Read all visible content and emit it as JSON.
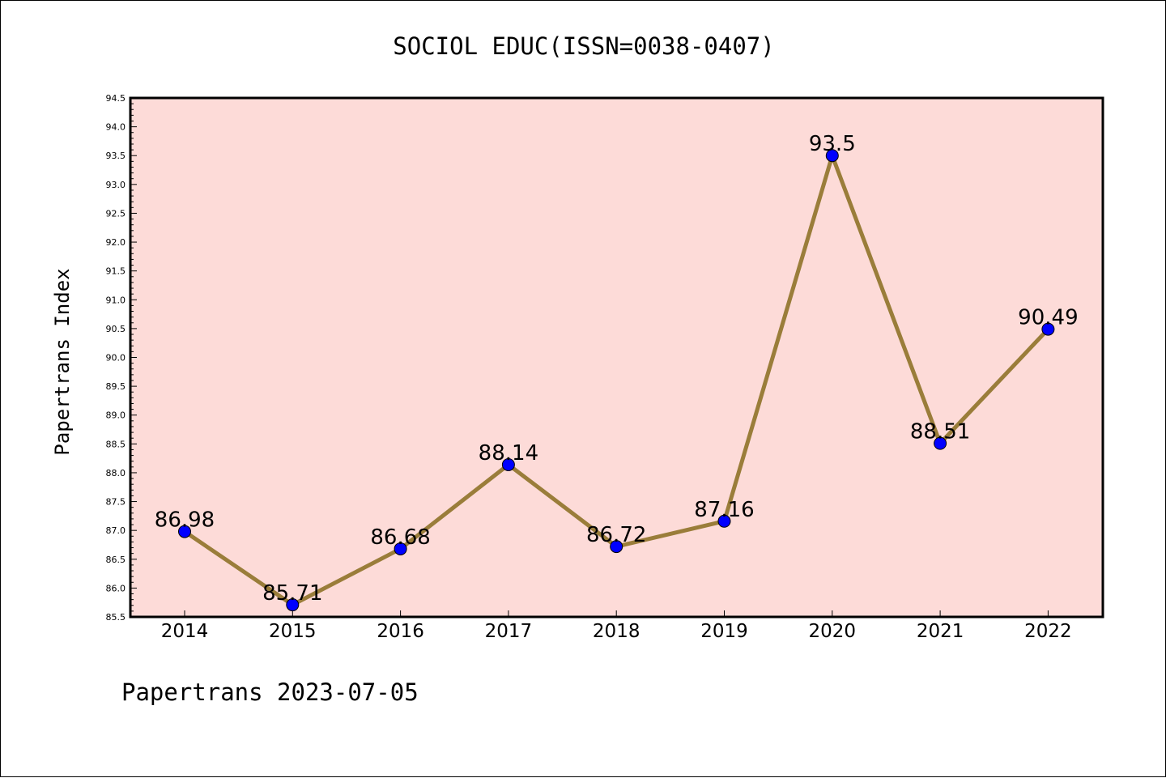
{
  "chart_data": {
    "type": "line",
    "title": "SOCIOL EDUC(ISSN=0038-0407)",
    "xlabel": "",
    "ylabel": "Papertrans Index",
    "footer": "Papertrans 2023-07-05",
    "categories": [
      "2014",
      "2015",
      "2016",
      "2017",
      "2018",
      "2019",
      "2020",
      "2021",
      "2022"
    ],
    "series": [
      {
        "values": [
          86.98,
          85.71,
          86.68,
          88.14,
          86.72,
          87.16,
          93.5,
          88.51,
          90.49
        ],
        "labels": [
          "86.98",
          "85.71",
          "86.68",
          "88.14",
          "86.72",
          "87.16",
          "93.5",
          "88.51",
          "90.49"
        ]
      }
    ],
    "ylim": [
      85.5,
      94.5
    ],
    "ytick_step": 0.5,
    "ytick_minor_step": 0.1,
    "yticks": [
      "85.5",
      "86.0",
      "86.5",
      "87.0",
      "87.5",
      "88.0",
      "88.5",
      "89.0",
      "89.5",
      "90.0",
      "90.5",
      "91.0",
      "91.5",
      "92.0",
      "92.5",
      "93.0",
      "93.5",
      "94.0",
      "94.5"
    ],
    "grid": false,
    "colors": {
      "plot_background": "#fddbd8",
      "line": "#9a7d3a",
      "marker": "#0000ff",
      "marker_edge": "#000000",
      "frame": "#000000"
    }
  }
}
